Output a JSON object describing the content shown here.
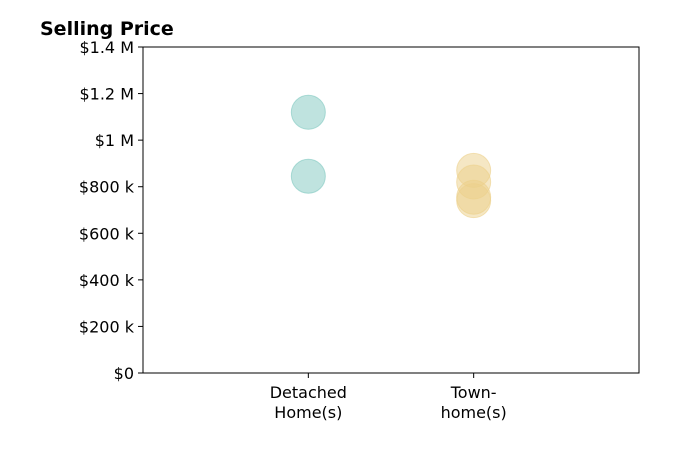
{
  "chart_data": {
    "type": "scatter",
    "title": "Selling Price",
    "xlabel": "",
    "ylabel": "",
    "categories": [
      [
        "Detached",
        "Home(s)"
      ],
      [
        "Town-",
        "home(s)"
      ]
    ],
    "xlim": [
      -1,
      2
    ],
    "ylim": [
      0,
      1400000
    ],
    "y_ticks": [
      0,
      200000,
      400000,
      600000,
      800000,
      1000000,
      1200000,
      1400000
    ],
    "y_tick_labels": [
      "$0",
      "$200 k",
      "$400 k",
      "$600 k",
      "$800 k",
      "$1 M",
      "$1.2 M",
      "$1.4 M"
    ],
    "grid": false,
    "legend": "none",
    "series": [
      {
        "category_index": 0,
        "color": "#7fc8c0",
        "points": [
          {
            "x": 0,
            "y": 1120000
          },
          {
            "x": 0,
            "y": 845000
          }
        ]
      },
      {
        "category_index": 1,
        "color": "#ecd08a",
        "points": [
          {
            "x": 1,
            "y": 870000
          },
          {
            "x": 1,
            "y": 820000
          },
          {
            "x": 1,
            "y": 755000
          },
          {
            "x": 1,
            "y": 740000
          }
        ]
      }
    ]
  }
}
